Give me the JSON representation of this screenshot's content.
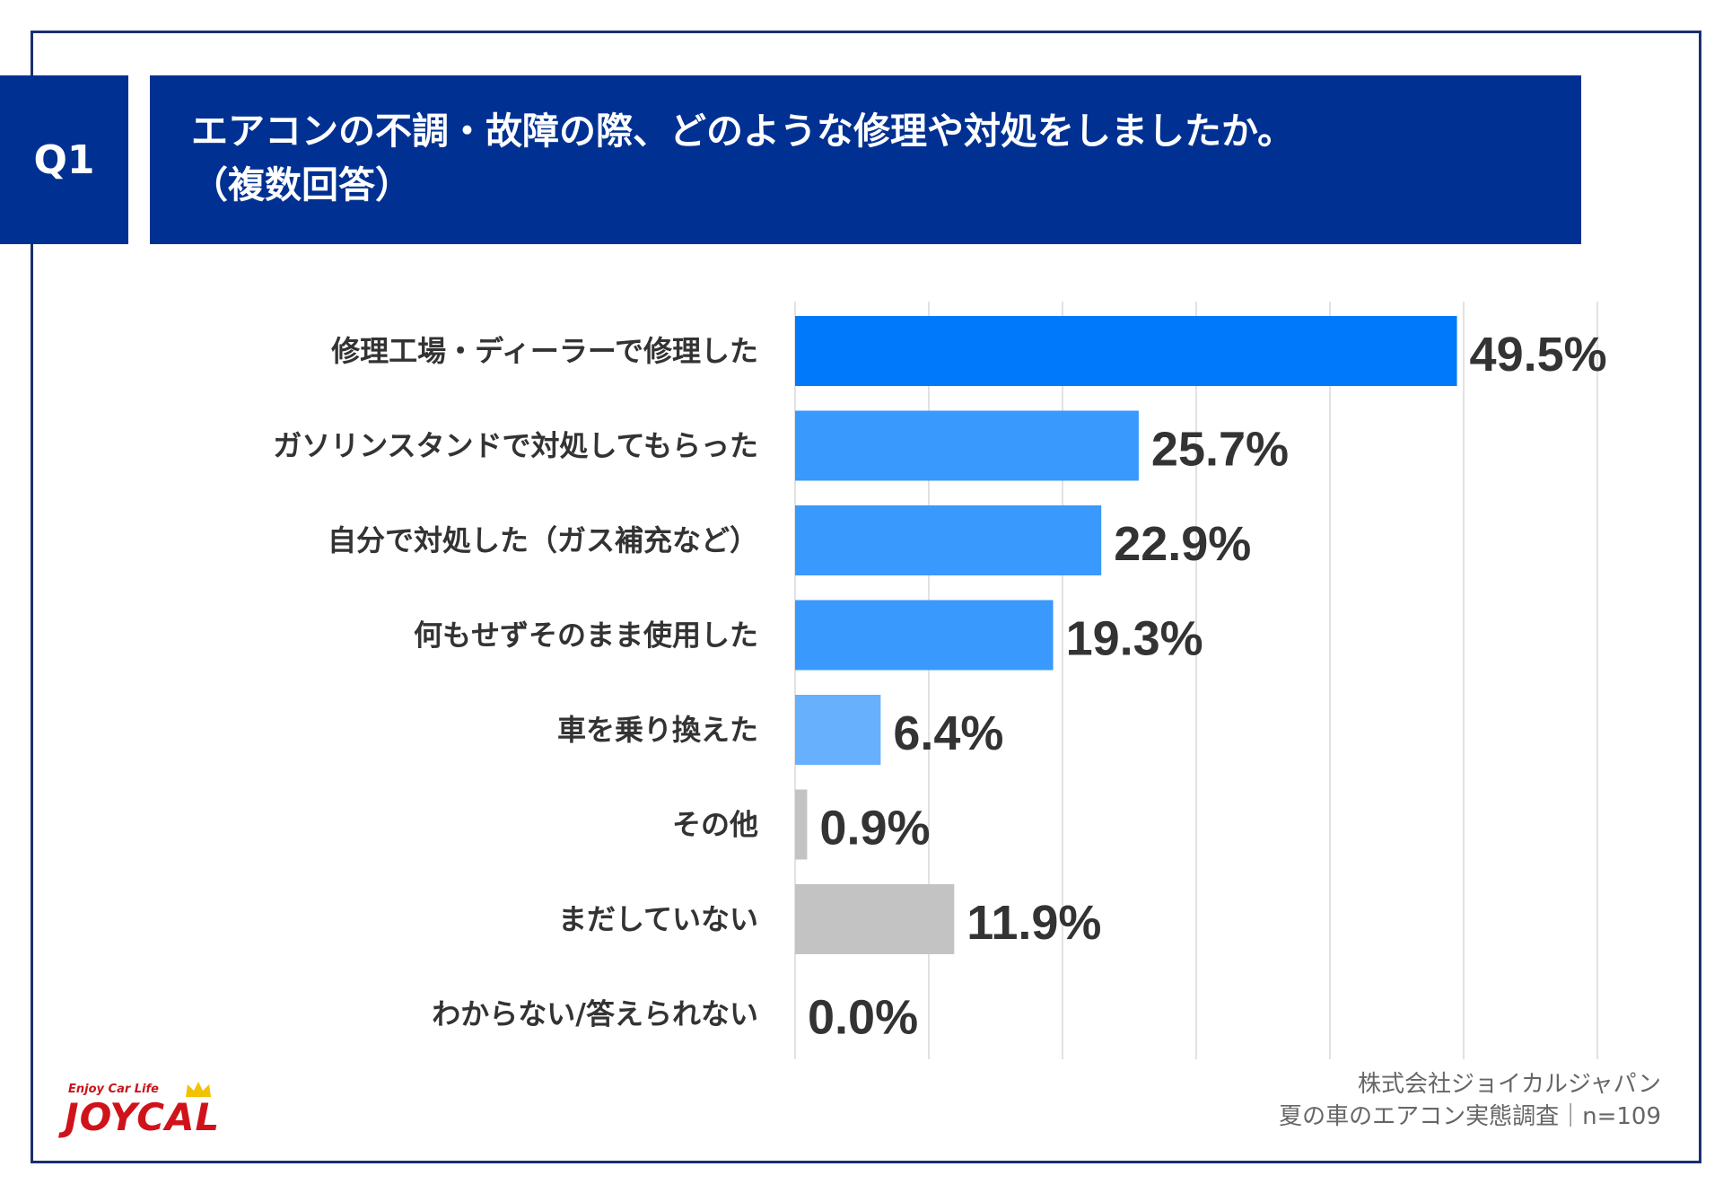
{
  "header": {
    "question_label": "Q1",
    "title_line1": "エアコンの不調・故障の際、どのような修理や対処をしましたか。",
    "title_line2": "（複数回答）"
  },
  "credit": {
    "company": "株式会社ジョイカルジャパン",
    "survey": "夏の車のエアコン実態調査｜n=109"
  },
  "logo": {
    "tagline": "Enjoy Car Life",
    "name": "JOYCAL"
  },
  "colors": {
    "header_bg": "#003192",
    "bar_top": "#0079fa",
    "bar_mid": "#3a99fc",
    "bar_light": "#66b0fd",
    "bar_gray": "#c3c3c3",
    "grid": "#d9d9d9",
    "value_text": "#333333"
  },
  "chart_data": {
    "type": "bar",
    "orientation": "horizontal",
    "unit": "%",
    "categories": [
      "修理工場・ディーラーで修理した",
      "ガソリンスタンドで対処してもらった",
      "自分で対処した（ガス補充など）",
      "何もせずそのまま使用した",
      "車を乗り換えた",
      "その他",
      "まだしていない",
      "わからない/答えられない"
    ],
    "values": [
      49.5,
      25.7,
      22.9,
      19.3,
      6.4,
      0.9,
      11.9,
      0.0
    ],
    "value_labels": [
      "49.5%",
      "25.7%",
      "22.9%",
      "19.3%",
      "6.4%",
      "0.9%",
      "11.9%",
      "0.0%"
    ],
    "bar_colors": [
      "#0079fa",
      "#3a99fc",
      "#3a99fc",
      "#3a99fc",
      "#66b0fd",
      "#c3c3c3",
      "#c3c3c3",
      "#c3c3c3"
    ],
    "xlim": [
      0,
      60
    ],
    "grid": true,
    "legend": false
  }
}
